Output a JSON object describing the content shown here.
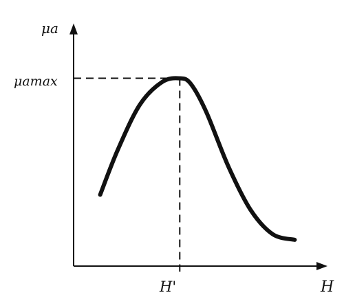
{
  "chart_data": {
    "type": "line",
    "ylabel": "μa",
    "xlabel": "H",
    "peak_y_label": "μamax",
    "peak_x_label": "H'",
    "series": [
      {
        "x": [
          0.12,
          0.2,
          0.3,
          0.4,
          0.48,
          0.53,
          0.6,
          0.7,
          0.8,
          0.9,
          1.0
        ],
        "values": [
          0.38,
          0.62,
          0.86,
          0.98,
          1.0,
          0.97,
          0.82,
          0.53,
          0.3,
          0.17,
          0.14
        ]
      }
    ],
    "peak": {
      "x": 0.48,
      "y": 1.0
    },
    "xlim": [
      0,
      1.12
    ],
    "ylim": [
      0,
      1.27
    ],
    "grid": false,
    "colors": {
      "ink": "#111111",
      "background": "#ffffff"
    }
  }
}
